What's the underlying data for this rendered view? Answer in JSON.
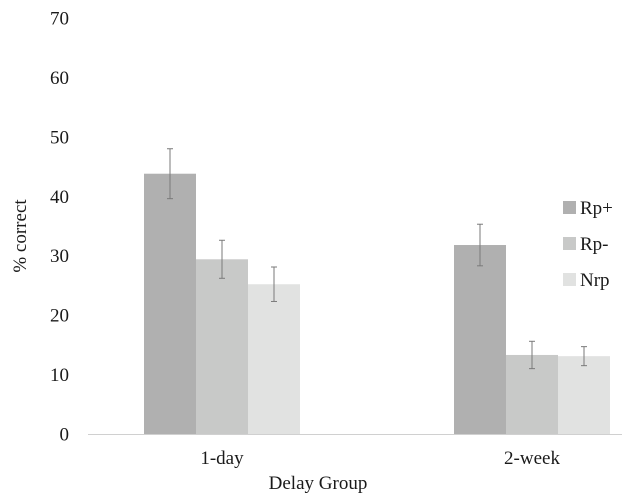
{
  "chart_data": {
    "type": "bar",
    "title": "",
    "xlabel": "Delay Group",
    "ylabel": "% correct",
    "ylim": [
      0,
      70
    ],
    "yticks": [
      0,
      10,
      20,
      30,
      40,
      50,
      60,
      70
    ],
    "categories": [
      "1-day",
      "2-week"
    ],
    "grid": false,
    "legend_position": "right",
    "series": [
      {
        "name": "Rp+",
        "color": "#b0b0b0",
        "values": [
          43.8,
          31.8
        ],
        "error": [
          4.2,
          3.5
        ]
      },
      {
        "name": "Rp-",
        "color": "#c8c9c8",
        "values": [
          29.4,
          13.3
        ],
        "error": [
          3.2,
          2.3
        ]
      },
      {
        "name": "Nrp",
        "color": "#e1e2e1",
        "values": [
          25.2,
          13.1
        ],
        "error": [
          2.9,
          1.6
        ]
      }
    ]
  }
}
